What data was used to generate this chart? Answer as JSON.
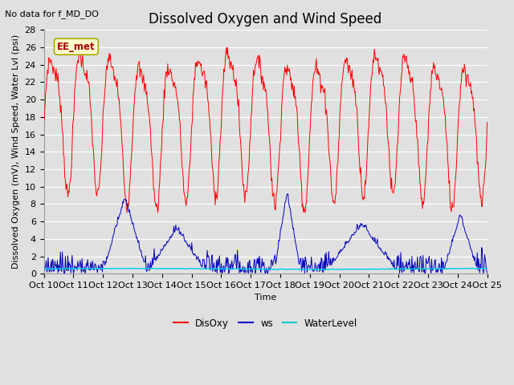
{
  "title": "Dissolved Oxygen and Wind Speed",
  "subtitle": "No data for f_MD_DO",
  "ylabel": "Dissolved Oxygen (mV), Wind Speed, Water Lvl (psi)",
  "xlabel": "Time",
  "annotation": "EE_met",
  "background_color": "#e0e0e0",
  "plot_bg_color": "#e0e0e0",
  "grid_color": "#ffffff",
  "ylim": [
    0,
    28
  ],
  "yticks": [
    0,
    2,
    4,
    6,
    8,
    10,
    12,
    14,
    16,
    18,
    20,
    22,
    24,
    26,
    28
  ],
  "xtick_labels": [
    "Oct 10",
    "Oct 11",
    "Oct 12",
    "Oct 13",
    "Oct 14",
    "Oct 15",
    "Oct 16",
    "Oct 17",
    "Oct 18",
    "Oct 19",
    "Oct 20",
    "Oct 21",
    "Oct 22",
    "Oct 23",
    "Oct 24",
    "Oct 25"
  ],
  "legend_labels": [
    "DisOxy",
    "ws",
    "WaterLevel"
  ],
  "legend_colors": [
    "#ff0000",
    "#0000cc",
    "#00cccc"
  ],
  "disoxy_color": "#ff0000",
  "ws_color": "#0000bb",
  "waterlevel_color": "#00ccee",
  "title_fontsize": 12,
  "axis_fontsize": 8,
  "tick_fontsize": 8
}
